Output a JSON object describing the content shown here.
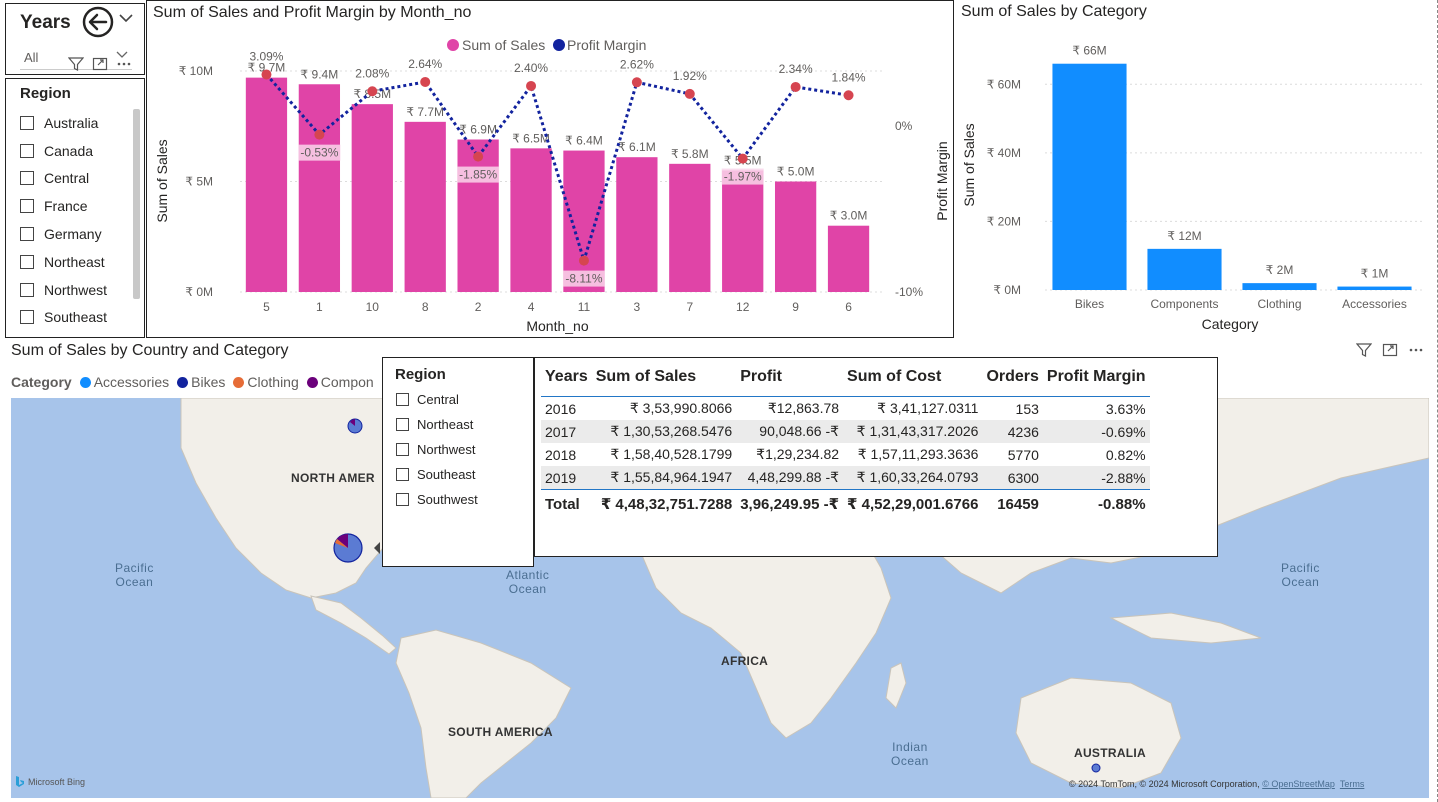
{
  "years_slicer": {
    "title": "Years",
    "selected": "All"
  },
  "region_slicer": {
    "title": "Region",
    "items": [
      "Australia",
      "Canada",
      "Central",
      "France",
      "Germany",
      "Northeast",
      "Northwest",
      "Southeast"
    ]
  },
  "combo_chart": {
    "title": "Sum of Sales and Profit Margin by Month_no",
    "legend": [
      "Sum of Sales",
      "Profit Margin"
    ],
    "colors": {
      "bar": "#e044a7",
      "line": "#12239e",
      "point": "#d64550"
    },
    "chart_data": {
      "type": "bar",
      "title": "Sum of Sales and Profit Margin by Month_no",
      "xlabel": "Month_no",
      "ylabel": "Sum of Sales",
      "y2label": "Profit Margin",
      "categories": [
        "5",
        "1",
        "10",
        "8",
        "2",
        "4",
        "11",
        "3",
        "7",
        "12",
        "9",
        "6"
      ],
      "y_ticks": [
        "₹ 10M",
        "₹ 5M",
        "₹ 0M"
      ],
      "y2_ticks": [
        "0%",
        "-10%"
      ],
      "ylim": [
        0,
        10
      ],
      "y2lim": [
        -10,
        3.3
      ],
      "series": [
        {
          "name": "Sum of Sales",
          "type": "bar",
          "values": [
            9.7,
            9.4,
            8.5,
            7.7,
            6.9,
            6.5,
            6.4,
            6.1,
            5.8,
            5.5,
            5.0,
            3.0
          ],
          "labels": [
            "₹ 9.7M",
            "₹ 9.4M",
            "₹ 8.5M",
            "₹ 7.7M",
            "₹ 6.9M",
            "₹ 6.5M",
            "₹ 6.4M",
            "₹ 6.1M",
            "₹ 5.8M",
            "₹ 5.5M",
            "₹ 5.0M",
            "₹ 3.0M"
          ]
        },
        {
          "name": "Profit Margin",
          "type": "line",
          "values": [
            3.09,
            -0.53,
            2.08,
            2.64,
            -1.85,
            2.4,
            -8.11,
            2.62,
            1.92,
            -1.97,
            2.34,
            1.84
          ],
          "labels": [
            "3.09%",
            "-0.53%",
            "2.08%",
            "2.64%",
            "-1.85%",
            "2.40%",
            "-8.11%",
            "2.62%",
            "1.92%",
            "-1.97%",
            "2.34%",
            "1.84%"
          ]
        }
      ]
    }
  },
  "category_chart": {
    "title": "Sum of Sales by Category",
    "colors": {
      "bar": "#118dff"
    },
    "chart_data": {
      "type": "bar",
      "title": "Sum of Sales by Category",
      "xlabel": "Category",
      "ylabel": "Sum of Sales",
      "categories": [
        "Bikes",
        "Components",
        "Clothing",
        "Accessories"
      ],
      "values": [
        66,
        12,
        2,
        1
      ],
      "labels": [
        "₹ 66M",
        "₹ 12M",
        "₹ 2M",
        "₹ 1M"
      ],
      "y_ticks": [
        "₹ 60M",
        "₹ 40M",
        "₹ 20M",
        "₹ 0M"
      ],
      "ylim": [
        0,
        70
      ]
    }
  },
  "map": {
    "title": "Sum of Sales by Country and Category",
    "legend_title": "Category",
    "legend": [
      {
        "label": "Accessories",
        "color": "#118dff"
      },
      {
        "label": "Bikes",
        "color": "#12239e"
      },
      {
        "label": "Clothing",
        "color": "#e66c37"
      },
      {
        "label": "Compon",
        "color": "#6b007b"
      }
    ],
    "labels": {
      "north_america": "NORTH AMER",
      "south_america": "SOUTH AMERICA",
      "africa": "AFRICA",
      "australia": "AUSTRALIA",
      "pacific_left_1": "Pacific",
      "pacific_left_2": "Ocean",
      "pacific_right_1": "Pacific",
      "pacific_right_2": "Ocean",
      "atlantic_1": "Atlantic",
      "atlantic_2": "Ocean",
      "indian_1": "Indian",
      "indian_2": "Ocean"
    },
    "bing": "Microsoft Bing",
    "attribution": "© 2024 TomTom, © 2024 Microsoft Corporation, ",
    "osm": "© OpenStreetMap",
    "terms": "Terms"
  },
  "region_slicer_2": {
    "title": "Region",
    "items": [
      "Central",
      "Northeast",
      "Northwest",
      "Southeast",
      "Southwest"
    ]
  },
  "summary_table": {
    "headers": [
      "Years",
      "Sum of Sales",
      "Profit",
      "Sum of Cost",
      "Orders",
      "Profit Margin"
    ],
    "rows": [
      [
        "2016",
        "₹ 3,53,990.8066",
        "₹12,863.78",
        "₹ 3,41,127.0311",
        "153",
        "3.63%"
      ],
      [
        "2017",
        "₹ 1,30,53,268.5476",
        "90,048.66 -₹",
        "₹ 1,31,43,317.2026",
        "4236",
        "-0.69%"
      ],
      [
        "2018",
        "₹ 1,58,40,528.1799",
        "₹1,29,234.82",
        "₹ 1,57,11,293.3636",
        "5770",
        "0.82%"
      ],
      [
        "2019",
        "₹ 1,55,84,964.1947",
        "4,48,299.88 -₹",
        "₹ 1,60,33,264.0793",
        "6300",
        "-2.88%"
      ]
    ],
    "total": [
      "Total",
      "₹ 4,48,32,751.7288",
      "3,96,249.95 -₹",
      "₹ 4,52,29,001.6766",
      "16459",
      "-0.88%"
    ]
  }
}
